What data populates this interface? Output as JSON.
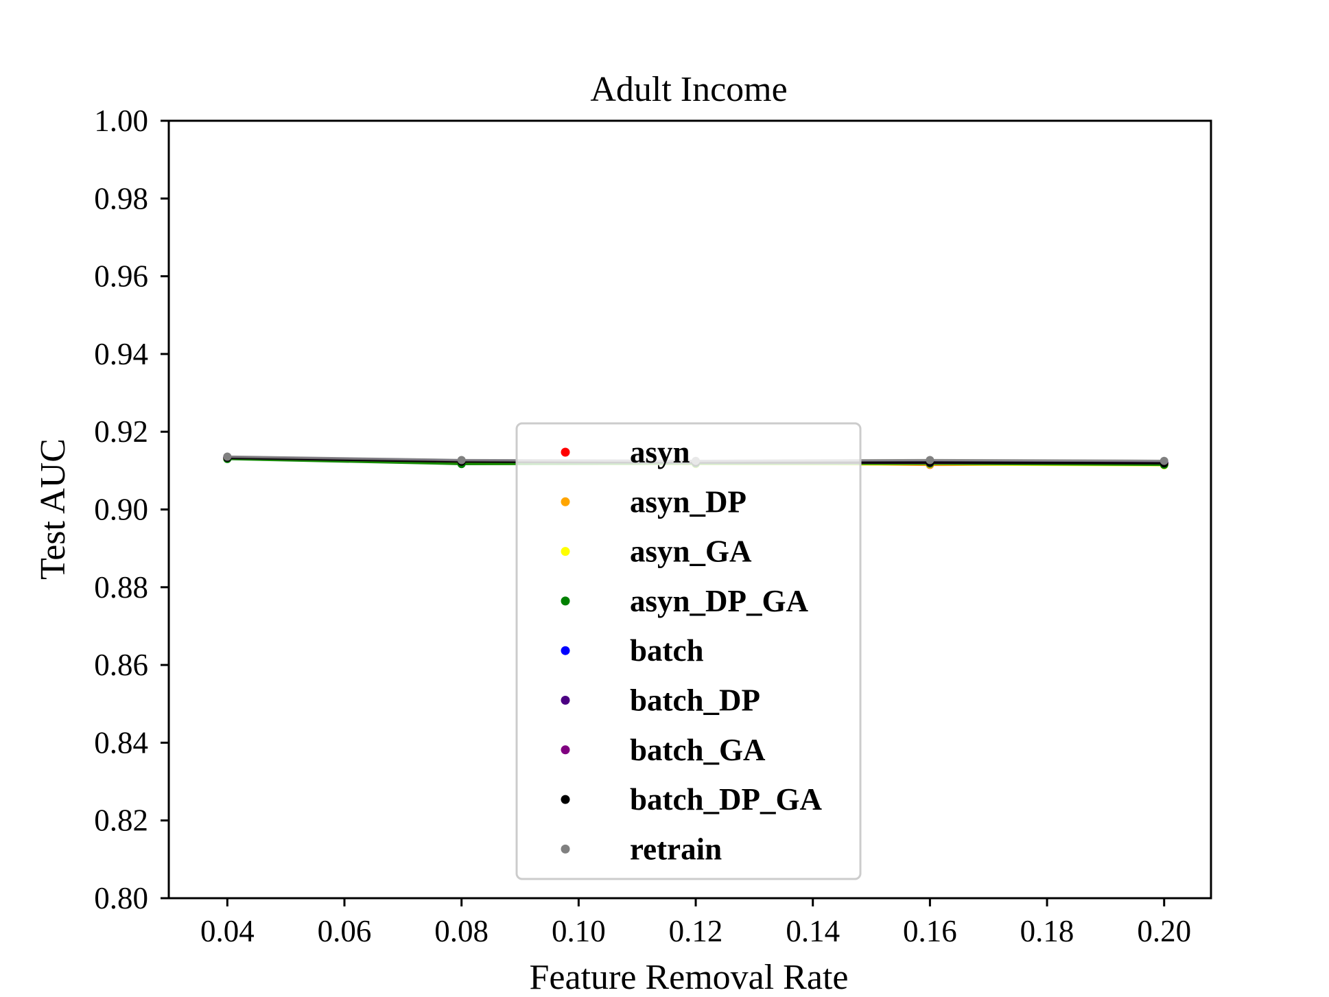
{
  "chart_data": {
    "type": "line",
    "title": "Adult Income",
    "xlabel": "Feature Removal Rate",
    "ylabel": "Test AUC",
    "xlim": [
      0.03,
      0.208
    ],
    "ylim": [
      0.8,
      1.0
    ],
    "xticks": [
      "0.04",
      "0.06",
      "0.08",
      "0.10",
      "0.12",
      "0.14",
      "0.16",
      "0.18",
      "0.20"
    ],
    "yticks": [
      "0.80",
      "0.82",
      "0.84",
      "0.86",
      "0.88",
      "0.90",
      "0.92",
      "0.94",
      "0.96",
      "0.98",
      "1.00"
    ],
    "x": [
      0.04,
      0.08,
      0.12,
      0.16,
      0.2
    ],
    "grid": false,
    "legend_position": "center",
    "series": [
      {
        "name": "asyn",
        "color": "#ff0000",
        "values": [
          0.9133,
          0.9122,
          0.912,
          0.9115,
          0.9118
        ]
      },
      {
        "name": "asyn_DP",
        "color": "#ffa500",
        "values": [
          0.9132,
          0.912,
          0.9118,
          0.9117,
          0.9116
        ]
      },
      {
        "name": "asyn_GA",
        "color": "#ffff00",
        "values": [
          0.9131,
          0.9118,
          0.9117,
          0.9116,
          0.9114
        ]
      },
      {
        "name": "asyn_DP_GA",
        "color": "#008000",
        "values": [
          0.913,
          0.9117,
          0.9118,
          0.9118,
          0.9115
        ]
      },
      {
        "name": "batch",
        "color": "#0000ff",
        "values": [
          0.9134,
          0.9125,
          0.9123,
          0.9122,
          0.9121
        ]
      },
      {
        "name": "batch_DP",
        "color": "#4b0082",
        "values": [
          0.9133,
          0.9124,
          0.9122,
          0.9121,
          0.912
        ]
      },
      {
        "name": "batch_GA",
        "color": "#800080",
        "values": [
          0.9134,
          0.9124,
          0.9122,
          0.912,
          0.912
        ]
      },
      {
        "name": "batch_DP_GA",
        "color": "#000000",
        "values": [
          0.9133,
          0.9123,
          0.9121,
          0.9121,
          0.9119
        ]
      },
      {
        "name": "retrain",
        "color": "#808080",
        "values": [
          0.9136,
          0.9127,
          0.9125,
          0.9127,
          0.9125
        ]
      }
    ]
  }
}
